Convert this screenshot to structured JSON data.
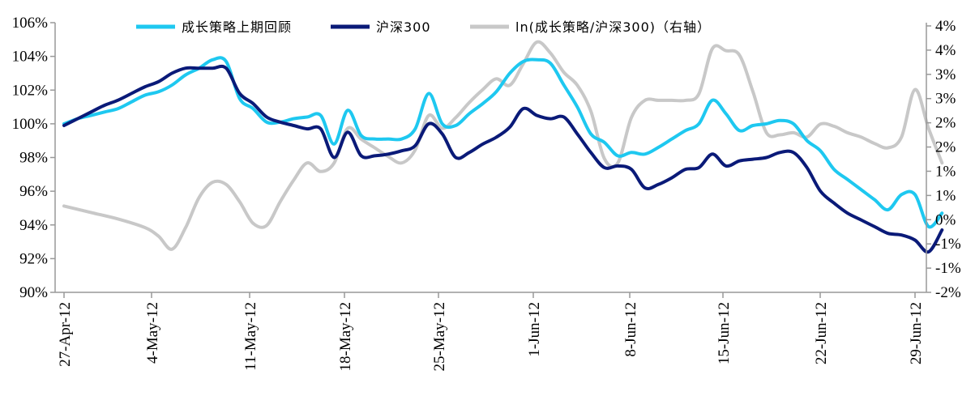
{
  "chart_data": {
    "type": "line",
    "title": "",
    "xlabel": "",
    "ylabel": "",
    "x_ticks": [
      "27-Apr-12",
      "4-May-12",
      "11-May-12",
      "18-May-12",
      "25-May-12",
      "1-Jun-12",
      "8-Jun-12",
      "15-Jun-12",
      "22-Jun-12",
      "29-Jun-12"
    ],
    "x_range": [
      "2012-04-27",
      "2012-06-29"
    ],
    "y_left": {
      "ticks": [
        "90%",
        "92%",
        "94%",
        "96%",
        "98%",
        "100%",
        "102%",
        "104%",
        "106%"
      ],
      "range": [
        90,
        106
      ],
      "unit": "%"
    },
    "y_right": {
      "ticks": [
        "-2%",
        "-1%",
        "-1%",
        "0%",
        "1%",
        "1%",
        "2%",
        "2%",
        "3%",
        "3%",
        "4%",
        "4%"
      ],
      "range": [
        -2,
        4.25
      ],
      "unit": "%"
    },
    "legend_position": "top",
    "grid": false,
    "series": [
      {
        "name": "成长策略上期回顾",
        "axis": "left",
        "color": "#1EC8F0",
        "points": [
          [
            "2012-04-27",
            100.0
          ],
          [
            "2012-04-28",
            100.3
          ],
          [
            "2012-04-29",
            100.5
          ],
          [
            "2012-04-30",
            100.7
          ],
          [
            "2012-05-01",
            100.9
          ],
          [
            "2012-05-02",
            101.3
          ],
          [
            "2012-05-03",
            101.7
          ],
          [
            "2012-05-04",
            101.9
          ],
          [
            "2012-05-05",
            102.3
          ],
          [
            "2012-05-06",
            102.9
          ],
          [
            "2012-05-07",
            103.3
          ],
          [
            "2012-05-08",
            103.8
          ],
          [
            "2012-05-09",
            103.7
          ],
          [
            "2012-05-10",
            101.5
          ],
          [
            "2012-05-11",
            100.9
          ],
          [
            "2012-05-12",
            100.1
          ],
          [
            "2012-05-13",
            100.1
          ],
          [
            "2012-05-14",
            100.3
          ],
          [
            "2012-05-15",
            100.4
          ],
          [
            "2012-05-16",
            100.5
          ],
          [
            "2012-05-17",
            98.8
          ],
          [
            "2012-05-18",
            100.8
          ],
          [
            "2012-05-19",
            99.3
          ],
          [
            "2012-05-20",
            99.1
          ],
          [
            "2012-05-21",
            99.1
          ],
          [
            "2012-05-22",
            99.1
          ],
          [
            "2012-05-23",
            99.7
          ],
          [
            "2012-05-24",
            101.8
          ],
          [
            "2012-05-25",
            100.0
          ],
          [
            "2012-05-26",
            99.9
          ],
          [
            "2012-05-27",
            100.6
          ],
          [
            "2012-05-28",
            101.2
          ],
          [
            "2012-05-29",
            101.9
          ],
          [
            "2012-05-30",
            103.0
          ],
          [
            "2012-05-31",
            103.7
          ],
          [
            "2012-06-01",
            103.8
          ],
          [
            "2012-06-02",
            103.6
          ],
          [
            "2012-06-03",
            102.3
          ],
          [
            "2012-06-04",
            101.0
          ],
          [
            "2012-06-05",
            99.4
          ],
          [
            "2012-06-06",
            98.9
          ],
          [
            "2012-06-07",
            98.1
          ],
          [
            "2012-06-08",
            98.3
          ],
          [
            "2012-06-09",
            98.2
          ],
          [
            "2012-06-10",
            98.6
          ],
          [
            "2012-06-11",
            99.1
          ],
          [
            "2012-06-12",
            99.6
          ],
          [
            "2012-06-13",
            100.0
          ],
          [
            "2012-06-14",
            101.4
          ],
          [
            "2012-06-15",
            100.6
          ],
          [
            "2012-06-16",
            99.6
          ],
          [
            "2012-06-17",
            99.9
          ],
          [
            "2012-06-18",
            100.0
          ],
          [
            "2012-06-19",
            100.2
          ],
          [
            "2012-06-20",
            100.0
          ],
          [
            "2012-06-21",
            99.0
          ],
          [
            "2012-06-22",
            98.4
          ],
          [
            "2012-06-23",
            97.3
          ],
          [
            "2012-06-24",
            96.7
          ],
          [
            "2012-06-25",
            96.1
          ],
          [
            "2012-06-26",
            95.5
          ],
          [
            "2012-06-27",
            94.9
          ],
          [
            "2012-06-28",
            95.8
          ],
          [
            "2012-06-29",
            95.8
          ],
          [
            "2012-06-30",
            93.9
          ],
          [
            "2012-07-01",
            94.7
          ]
        ]
      },
      {
        "name": "沪深300",
        "axis": "left",
        "color": "#0A1A78",
        "points": [
          [
            "2012-04-27",
            99.9
          ],
          [
            "2012-04-28",
            100.3
          ],
          [
            "2012-04-29",
            100.7
          ],
          [
            "2012-04-30",
            101.1
          ],
          [
            "2012-05-01",
            101.4
          ],
          [
            "2012-05-02",
            101.8
          ],
          [
            "2012-05-03",
            102.2
          ],
          [
            "2012-05-04",
            102.5
          ],
          [
            "2012-05-05",
            103.0
          ],
          [
            "2012-05-06",
            103.3
          ],
          [
            "2012-05-07",
            103.3
          ],
          [
            "2012-05-08",
            103.3
          ],
          [
            "2012-05-09",
            103.3
          ],
          [
            "2012-05-10",
            101.8
          ],
          [
            "2012-05-11",
            101.2
          ],
          [
            "2012-05-12",
            100.4
          ],
          [
            "2012-05-13",
            100.1
          ],
          [
            "2012-05-14",
            99.9
          ],
          [
            "2012-05-15",
            99.7
          ],
          [
            "2012-05-16",
            99.7
          ],
          [
            "2012-05-17",
            98.0
          ],
          [
            "2012-05-18",
            99.5
          ],
          [
            "2012-05-19",
            98.1
          ],
          [
            "2012-05-20",
            98.1
          ],
          [
            "2012-05-21",
            98.2
          ],
          [
            "2012-05-22",
            98.4
          ],
          [
            "2012-05-23",
            98.7
          ],
          [
            "2012-05-24",
            100.0
          ],
          [
            "2012-05-25",
            99.4
          ],
          [
            "2012-05-26",
            98.0
          ],
          [
            "2012-05-27",
            98.3
          ],
          [
            "2012-05-28",
            98.8
          ],
          [
            "2012-05-29",
            99.2
          ],
          [
            "2012-05-30",
            99.8
          ],
          [
            "2012-05-31",
            100.9
          ],
          [
            "2012-06-01",
            100.5
          ],
          [
            "2012-06-02",
            100.3
          ],
          [
            "2012-06-03",
            100.4
          ],
          [
            "2012-06-04",
            99.4
          ],
          [
            "2012-06-05",
            98.3
          ],
          [
            "2012-06-06",
            97.4
          ],
          [
            "2012-06-07",
            97.5
          ],
          [
            "2012-06-08",
            97.3
          ],
          [
            "2012-06-09",
            96.2
          ],
          [
            "2012-06-10",
            96.4
          ],
          [
            "2012-06-11",
            96.8
          ],
          [
            "2012-06-12",
            97.3
          ],
          [
            "2012-06-13",
            97.4
          ],
          [
            "2012-06-14",
            98.2
          ],
          [
            "2012-06-15",
            97.5
          ],
          [
            "2012-06-16",
            97.8
          ],
          [
            "2012-06-17",
            97.9
          ],
          [
            "2012-06-18",
            98.0
          ],
          [
            "2012-06-19",
            98.3
          ],
          [
            "2012-06-20",
            98.3
          ],
          [
            "2012-06-21",
            97.4
          ],
          [
            "2012-06-22",
            96.0
          ],
          [
            "2012-06-23",
            95.3
          ],
          [
            "2012-06-24",
            94.7
          ],
          [
            "2012-06-25",
            94.3
          ],
          [
            "2012-06-26",
            93.9
          ],
          [
            "2012-06-27",
            93.5
          ],
          [
            "2012-06-28",
            93.4
          ],
          [
            "2012-06-29",
            93.1
          ],
          [
            "2012-06-30",
            92.4
          ],
          [
            "2012-07-01",
            93.7
          ]
        ]
      },
      {
        "name": "ln(成长策略/沪深300)（右轴）",
        "axis": "right",
        "color": "#C8C8C8",
        "points": [
          [
            "2012-04-27",
            0.0
          ],
          [
            "2012-04-29",
            -0.15
          ],
          [
            "2012-05-01",
            -0.3
          ],
          [
            "2012-05-03",
            -0.5
          ],
          [
            "2012-05-04",
            -0.7
          ],
          [
            "2012-05-05",
            -1.0
          ],
          [
            "2012-05-06",
            -0.5
          ],
          [
            "2012-05-07",
            0.2
          ],
          [
            "2012-05-08",
            0.55
          ],
          [
            "2012-05-09",
            0.5
          ],
          [
            "2012-05-10",
            0.1
          ],
          [
            "2012-05-11",
            -0.4
          ],
          [
            "2012-05-12",
            -0.45
          ],
          [
            "2012-05-13",
            0.1
          ],
          [
            "2012-05-14",
            0.6
          ],
          [
            "2012-05-15",
            1.0
          ],
          [
            "2012-05-16",
            0.8
          ],
          [
            "2012-05-17",
            1.0
          ],
          [
            "2012-05-18",
            1.8
          ],
          [
            "2012-05-19",
            1.55
          ],
          [
            "2012-05-20",
            1.35
          ],
          [
            "2012-05-21",
            1.15
          ],
          [
            "2012-05-22",
            1.0
          ],
          [
            "2012-05-23",
            1.3
          ],
          [
            "2012-05-24",
            2.1
          ],
          [
            "2012-05-25",
            1.8
          ],
          [
            "2012-05-26",
            2.05
          ],
          [
            "2012-05-27",
            2.4
          ],
          [
            "2012-05-28",
            2.7
          ],
          [
            "2012-05-29",
            2.95
          ],
          [
            "2012-05-30",
            2.8
          ],
          [
            "2012-05-31",
            3.3
          ],
          [
            "2012-06-01",
            3.8
          ],
          [
            "2012-06-02",
            3.55
          ],
          [
            "2012-06-03",
            3.1
          ],
          [
            "2012-06-04",
            2.8
          ],
          [
            "2012-06-05",
            2.2
          ],
          [
            "2012-06-06",
            1.1
          ],
          [
            "2012-06-07",
            1.0
          ],
          [
            "2012-06-08",
            2.05
          ],
          [
            "2012-06-09",
            2.45
          ],
          [
            "2012-06-10",
            2.45
          ],
          [
            "2012-06-11",
            2.45
          ],
          [
            "2012-06-12",
            2.45
          ],
          [
            "2012-06-13",
            2.6
          ],
          [
            "2012-06-14",
            3.65
          ],
          [
            "2012-06-15",
            3.6
          ],
          [
            "2012-06-16",
            3.5
          ],
          [
            "2012-06-17",
            2.65
          ],
          [
            "2012-06-18",
            1.7
          ],
          [
            "2012-06-19",
            1.65
          ],
          [
            "2012-06-20",
            1.7
          ],
          [
            "2012-06-21",
            1.6
          ],
          [
            "2012-06-22",
            1.9
          ],
          [
            "2012-06-23",
            1.85
          ],
          [
            "2012-06-24",
            1.7
          ],
          [
            "2012-06-25",
            1.6
          ],
          [
            "2012-06-26",
            1.45
          ],
          [
            "2012-06-27",
            1.35
          ],
          [
            "2012-06-28",
            1.6
          ],
          [
            "2012-06-29",
            2.7
          ],
          [
            "2012-06-30",
            1.8
          ],
          [
            "2012-07-01",
            1.0
          ]
        ]
      }
    ]
  }
}
